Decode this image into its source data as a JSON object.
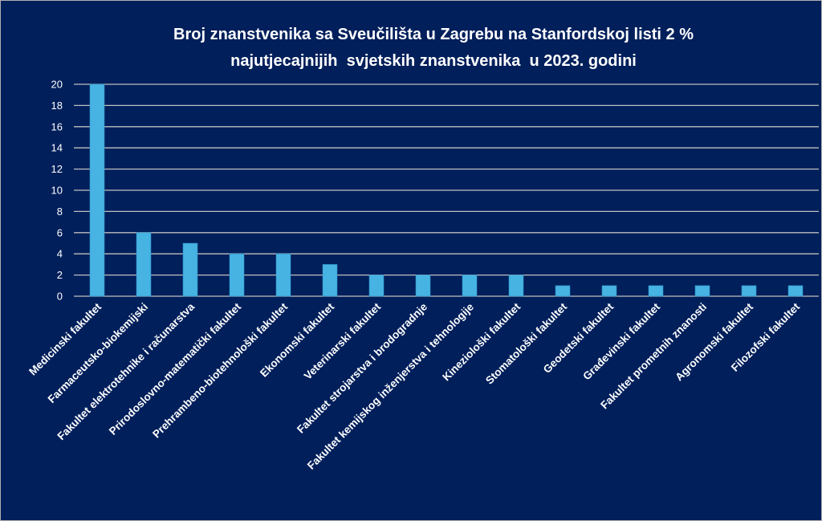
{
  "chart_data": {
    "type": "bar",
    "title": [
      "Broj znanstvenika sa Sveučilišta u Zagrebu na Stanfordskoj listi 2 %",
      "najutjecajnijih  svjetskih znanstvenika  u 2023. godini"
    ],
    "categories": [
      "Medicinski fakultet",
      "Farmaceutsko-biokemijski",
      "Fakultet elektrotehnike i računarstva",
      "Prirodoslovno-matematički fakultet",
      "Prehrambeno-biotehnološki fakultet",
      "Ekonomski fakultet",
      "Veterinarski fakultet",
      "Fakultet strojarstva i brodogradnje",
      "Fakultet kemijskog inženjerstva i tehnologije",
      "Kineziološki fakultet",
      "Stomatološki  fakultet",
      "Geodetski fakultet",
      "Građevinski fakultet",
      "Fakultet prometnih znanosti",
      "Agronomski fakultet",
      "Filozofski fakultet"
    ],
    "values": [
      20,
      6,
      5,
      4,
      4,
      3,
      2,
      2,
      2,
      2,
      1,
      1,
      1,
      1,
      1,
      1
    ],
    "xlabel": "",
    "ylabel": "",
    "ylim": [
      0,
      20
    ],
    "yticks": [
      0,
      2,
      4,
      6,
      8,
      10,
      12,
      14,
      16,
      18,
      20
    ],
    "grid": true,
    "colors": {
      "background": "#001f5b",
      "bar": "#47b3e3",
      "grid": "#bfbfbf",
      "text": "#ffffff"
    }
  }
}
